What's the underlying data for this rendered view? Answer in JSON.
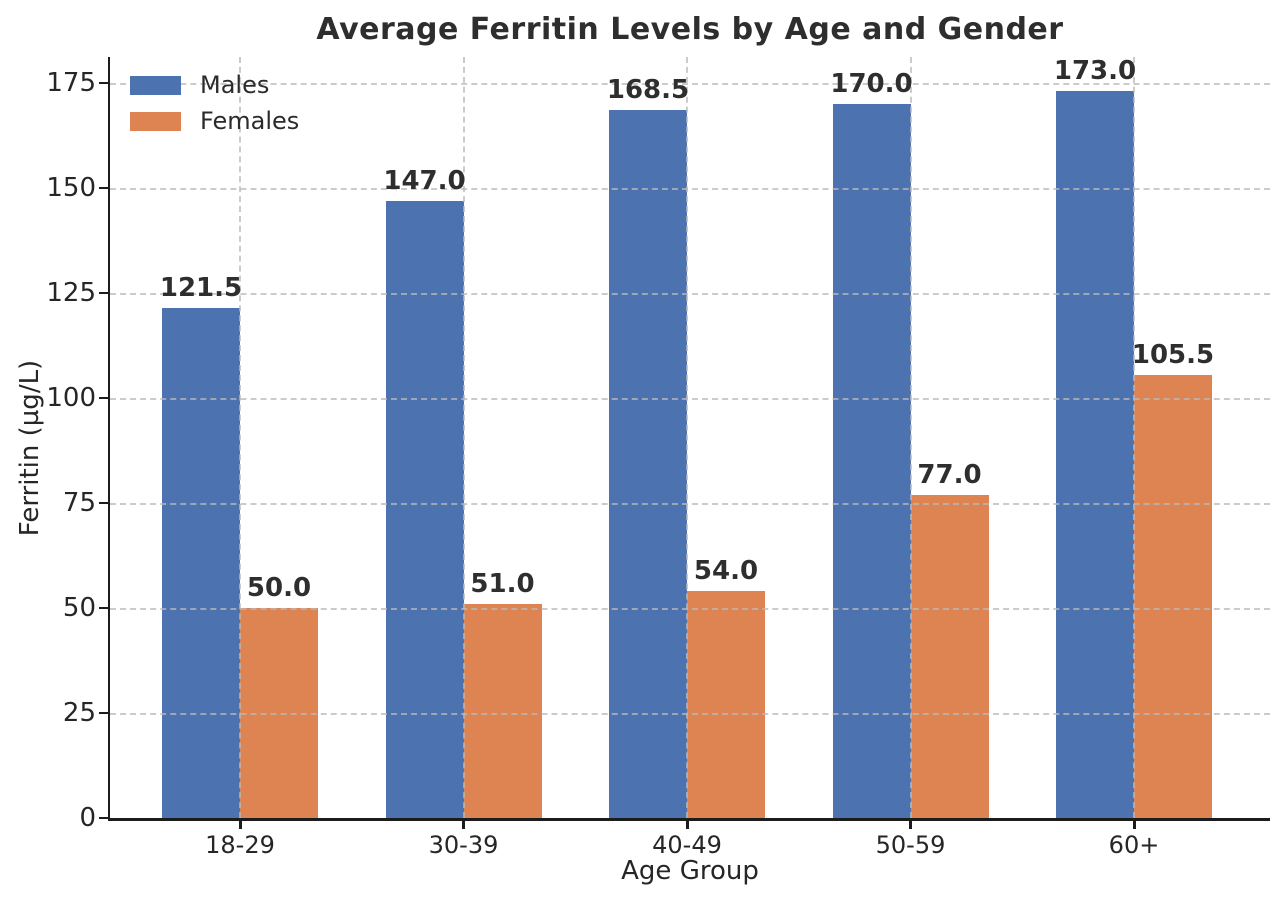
{
  "chart_data": {
    "type": "bar",
    "title": "Average Ferritin Levels by Age and Gender",
    "xlabel": "Age Group",
    "ylabel": "Ferritin (µg/L)",
    "categories": [
      "18-29",
      "30-39",
      "40-49",
      "50-59",
      "60+"
    ],
    "series": [
      {
        "name": "Males",
        "color": "#4C72B0",
        "values": [
          121.5,
          147.0,
          168.5,
          170.0,
          173.0
        ]
      },
      {
        "name": "Females",
        "color": "#DD8452",
        "values": [
          50.0,
          51.0,
          54.0,
          77.0,
          105.5
        ]
      }
    ],
    "bar_value_labels": [
      [
        "121.5",
        "147.0",
        "168.5",
        "170.0",
        "173.0"
      ],
      [
        "50.0",
        "51.0",
        "54.0",
        "77.0",
        "105.5"
      ]
    ],
    "y_ticks": [
      0,
      25,
      50,
      75,
      100,
      125,
      150,
      175
    ],
    "ylim": [
      0,
      181.2
    ],
    "grid": true,
    "grid_style": "dashed",
    "legend_position": "upper-left",
    "spine_color": "#1c1c1c",
    "text_color": "#262626"
  }
}
